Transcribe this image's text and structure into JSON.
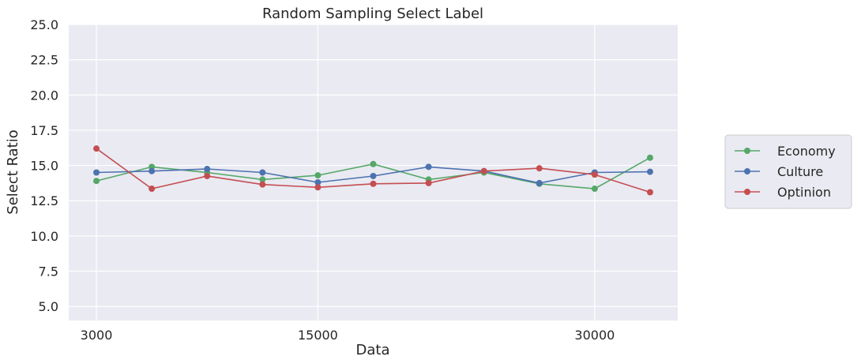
{
  "chart_data": {
    "type": "line",
    "title": "Random Sampling Select Label",
    "xlabel": "Data",
    "ylabel": "Select Ratio",
    "x": [
      3000,
      6000,
      9000,
      12000,
      15000,
      18000,
      21000,
      24000,
      27000,
      30000,
      33000
    ],
    "x_ticks": [
      3000,
      15000,
      30000
    ],
    "xlim": [
      1500,
      34500
    ],
    "ylim": [
      4,
      25
    ],
    "y_ticks": [
      5.0,
      7.5,
      10.0,
      12.5,
      15.0,
      17.5,
      20.0,
      22.5,
      25.0
    ],
    "y_tick_labels": [
      "5.0",
      "7.5",
      "10.0",
      "12.5",
      "15.0",
      "17.5",
      "20.0",
      "22.5",
      "25.0"
    ],
    "grid": true,
    "legend_position": "right",
    "series": [
      {
        "name": "Economy",
        "color": "#55a868",
        "values": [
          13.9,
          14.9,
          14.5,
          14.0,
          14.3,
          15.1,
          14.0,
          14.5,
          13.7,
          13.35,
          15.55
        ]
      },
      {
        "name": "Culture",
        "color": "#4c72b0",
        "values": [
          14.5,
          14.6,
          14.75,
          14.5,
          13.8,
          14.25,
          14.9,
          14.6,
          13.75,
          14.5,
          14.55
        ]
      },
      {
        "name": "Optinion",
        "color": "#c44e52",
        "values": [
          16.2,
          13.35,
          14.25,
          13.65,
          13.45,
          13.7,
          13.75,
          14.6,
          14.8,
          14.35,
          13.1
        ]
      }
    ]
  }
}
